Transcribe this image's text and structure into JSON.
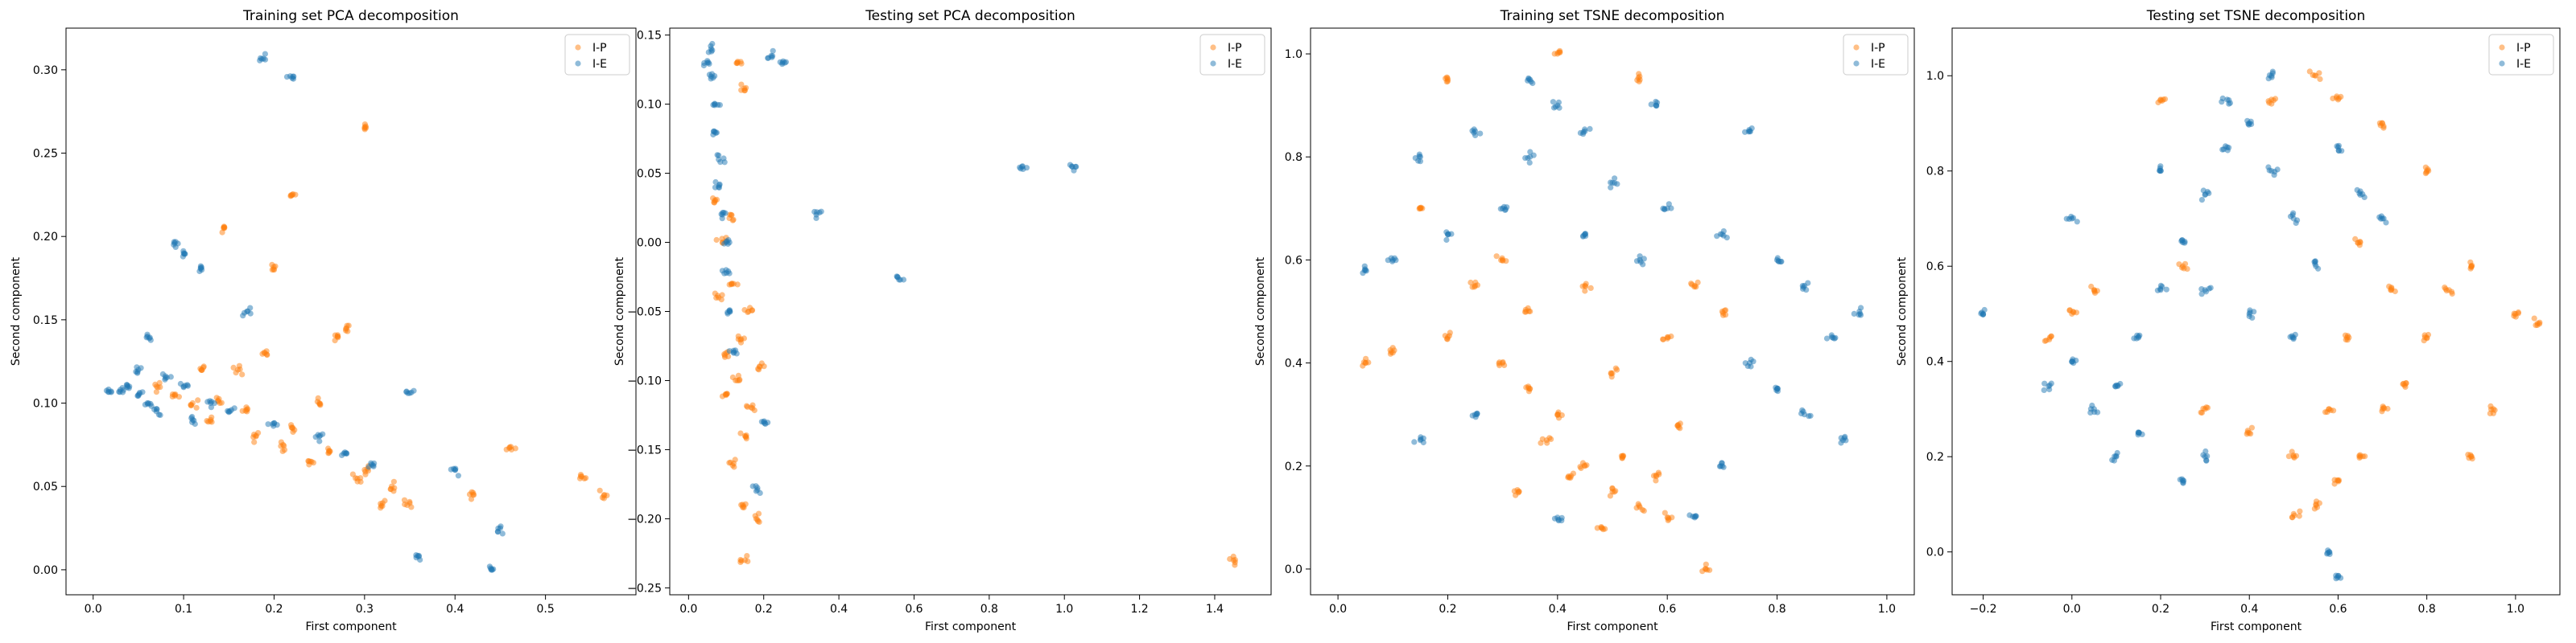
{
  "colors": {
    "ip": "#ff7f0e",
    "ie": "#1f77b4"
  },
  "chart_data": [
    {
      "type": "scatter",
      "title": "Training set PCA decomposition",
      "xlabel": "First component",
      "ylabel": "Second component",
      "xlim": [
        -0.03,
        0.6
      ],
      "ylim": [
        -0.015,
        0.325
      ],
      "xticks": [
        0.0,
        0.1,
        0.2,
        0.3,
        0.4,
        0.5
      ],
      "yticks": [
        0.0,
        0.05,
        0.1,
        0.15,
        0.2,
        0.25,
        0.3
      ],
      "xtick_labels": [
        "0.0",
        "0.1",
        "0.2",
        "0.3",
        "0.4",
        "0.5"
      ],
      "ytick_labels": [
        "0.00",
        "0.05",
        "0.10",
        "0.15",
        "0.20",
        "0.25",
        "0.30"
      ],
      "legend": {
        "position": "top-right",
        "entries": [
          "I-P",
          "I-E"
        ]
      },
      "grid": false,
      "series": [
        {
          "name": "I-P",
          "color": "#ff7f0e",
          "points": [
            [
              0.3,
              0.265
            ],
            [
              0.22,
              0.225
            ],
            [
              0.145,
              0.205
            ],
            [
              0.2,
              0.18
            ],
            [
              0.28,
              0.145
            ],
            [
              0.27,
              0.14
            ],
            [
              0.19,
              0.13
            ],
            [
              0.12,
              0.12
            ],
            [
              0.16,
              0.12
            ],
            [
              0.25,
              0.1
            ],
            [
              0.3,
              0.06
            ],
            [
              0.33,
              0.05
            ],
            [
              0.35,
              0.04
            ],
            [
              0.42,
              0.045
            ],
            [
              0.46,
              0.073
            ],
            [
              0.54,
              0.056
            ],
            [
              0.565,
              0.045
            ],
            [
              0.22,
              0.085
            ],
            [
              0.17,
              0.095
            ],
            [
              0.14,
              0.1
            ],
            [
              0.26,
              0.07
            ],
            [
              0.09,
              0.105
            ],
            [
              0.07,
              0.11
            ],
            [
              0.11,
              0.1
            ],
            [
              0.13,
              0.09
            ],
            [
              0.18,
              0.08
            ],
            [
              0.21,
              0.075
            ],
            [
              0.24,
              0.065
            ],
            [
              0.29,
              0.055
            ],
            [
              0.32,
              0.04
            ]
          ]
        },
        {
          "name": "I-E",
          "color": "#1f77b4",
          "points": [
            [
              0.185,
              0.307
            ],
            [
              0.22,
              0.295
            ],
            [
              0.09,
              0.196
            ],
            [
              0.1,
              0.19
            ],
            [
              0.12,
              0.18
            ],
            [
              0.17,
              0.155
            ],
            [
              0.06,
              0.14
            ],
            [
              0.35,
              0.106
            ],
            [
              0.4,
              0.06
            ],
            [
              0.36,
              0.008
            ],
            [
              0.44,
              0.0
            ],
            [
              0.45,
              0.025
            ],
            [
              0.05,
              0.12
            ],
            [
              0.08,
              0.115
            ],
            [
              0.04,
              0.11
            ],
            [
              0.03,
              0.108
            ],
            [
              0.1,
              0.11
            ],
            [
              0.13,
              0.1
            ],
            [
              0.15,
              0.095
            ],
            [
              0.2,
              0.088
            ],
            [
              0.25,
              0.08
            ],
            [
              0.28,
              0.07
            ],
            [
              0.31,
              0.062
            ],
            [
              0.07,
              0.095
            ],
            [
              0.06,
              0.1
            ],
            [
              0.02,
              0.107
            ],
            [
              0.05,
              0.105
            ],
            [
              0.11,
              0.09
            ]
          ]
        }
      ]
    },
    {
      "type": "scatter",
      "title": "Testing set PCA decomposition",
      "xlabel": "First component",
      "ylabel": "Second component",
      "xlim": [
        -0.05,
        1.55
      ],
      "ylim": [
        -0.255,
        0.155
      ],
      "xticks": [
        0.0,
        0.2,
        0.4,
        0.6,
        0.8,
        1.0,
        1.2,
        1.4
      ],
      "yticks": [
        -0.25,
        -0.2,
        -0.15,
        -0.1,
        -0.05,
        0.0,
        0.05,
        0.1,
        0.15
      ],
      "xtick_labels": [
        "0.0",
        "0.2",
        "0.4",
        "0.6",
        "0.8",
        "1.0",
        "1.2",
        "1.4"
      ],
      "ytick_labels": [
        "−0.25",
        "−0.20",
        "−0.15",
        "−0.10",
        "−0.05",
        "0.00",
        "0.05",
        "0.10",
        "0.15"
      ],
      "legend": {
        "position": "top-right",
        "entries": [
          "I-P",
          "I-E"
        ]
      },
      "grid": false,
      "series": [
        {
          "name": "I-P",
          "color": "#ff7f0e",
          "points": [
            [
              1.45,
              -0.23
            ],
            [
              0.15,
              -0.23
            ],
            [
              0.14,
              -0.19
            ],
            [
              0.18,
              -0.2
            ],
            [
              0.12,
              -0.16
            ],
            [
              0.15,
              -0.14
            ],
            [
              0.17,
              -0.12
            ],
            [
              0.13,
              -0.1
            ],
            [
              0.1,
              -0.08
            ],
            [
              0.14,
              -0.07
            ],
            [
              0.16,
              -0.05
            ],
            [
              0.12,
              -0.03
            ],
            [
              0.09,
              0.0
            ],
            [
              0.11,
              0.02
            ],
            [
              0.15,
              0.11
            ],
            [
              0.13,
              0.13
            ],
            [
              0.1,
              -0.11
            ],
            [
              0.19,
              -0.09
            ],
            [
              0.08,
              -0.04
            ],
            [
              0.07,
              0.03
            ]
          ]
        },
        {
          "name": "I-E",
          "color": "#1f77b4",
          "points": [
            [
              1.02,
              0.055
            ],
            [
              0.89,
              0.053
            ],
            [
              0.56,
              -0.027
            ],
            [
              0.34,
              0.02
            ],
            [
              0.25,
              0.13
            ],
            [
              0.22,
              0.135
            ],
            [
              0.2,
              -0.13
            ],
            [
              0.18,
              -0.18
            ],
            [
              0.06,
              0.14
            ],
            [
              0.06,
              0.12
            ],
            [
              0.07,
              0.1
            ],
            [
              0.07,
              0.08
            ],
            [
              0.08,
              0.06
            ],
            [
              0.08,
              0.04
            ],
            [
              0.09,
              0.02
            ],
            [
              0.1,
              0.0
            ],
            [
              0.1,
              -0.02
            ],
            [
              0.11,
              -0.05
            ],
            [
              0.12,
              -0.08
            ],
            [
              0.05,
              0.13
            ]
          ]
        }
      ]
    },
    {
      "type": "scatter",
      "title": "Training set TSNE decomposition",
      "xlabel": "First component",
      "ylabel": "Second component",
      "xlim": [
        -0.05,
        1.05
      ],
      "ylim": [
        -0.05,
        1.05
      ],
      "xticks": [
        0.0,
        0.2,
        0.4,
        0.6,
        0.8,
        1.0
      ],
      "yticks": [
        0.0,
        0.2,
        0.4,
        0.6,
        0.8,
        1.0
      ],
      "xtick_labels": [
        "0.0",
        "0.2",
        "0.4",
        "0.6",
        "0.8",
        "1.0"
      ],
      "ytick_labels": [
        "0.0",
        "0.2",
        "0.4",
        "0.6",
        "0.8",
        "1.0"
      ],
      "legend": {
        "position": "top-right",
        "entries": [
          "I-P",
          "I-E"
        ]
      },
      "grid": false,
      "series": [
        {
          "name": "I-P",
          "color": "#ff7f0e",
          "points": [
            [
              0.55,
              0.12
            ],
            [
              0.5,
              0.15
            ],
            [
              0.6,
              0.1
            ],
            [
              0.45,
              0.2
            ],
            [
              0.52,
              0.22
            ],
            [
              0.58,
              0.18
            ],
            [
              0.4,
              0.3
            ],
            [
              0.35,
              0.35
            ],
            [
              0.3,
              0.4
            ],
            [
              0.2,
              0.45
            ],
            [
              0.1,
              0.42
            ],
            [
              0.05,
              0.4
            ],
            [
              0.25,
              0.55
            ],
            [
              0.3,
              0.6
            ],
            [
              0.65,
              0.55
            ],
            [
              0.7,
              0.5
            ],
            [
              0.6,
              0.45
            ],
            [
              0.5,
              0.38
            ],
            [
              0.38,
              0.25
            ],
            [
              0.42,
              0.18
            ],
            [
              0.67,
              0.0
            ],
            [
              0.2,
              0.95
            ],
            [
              0.4,
              1.0
            ],
            [
              0.55,
              0.95
            ],
            [
              0.15,
              0.7
            ],
            [
              0.35,
              0.5
            ],
            [
              0.45,
              0.55
            ],
            [
              0.62,
              0.28
            ],
            [
              0.48,
              0.08
            ],
            [
              0.33,
              0.15
            ]
          ]
        },
        {
          "name": "I-E",
          "color": "#1f77b4",
          "points": [
            [
              0.4,
              0.9
            ],
            [
              0.45,
              0.85
            ],
            [
              0.35,
              0.8
            ],
            [
              0.5,
              0.75
            ],
            [
              0.3,
              0.7
            ],
            [
              0.6,
              0.7
            ],
            [
              0.7,
              0.65
            ],
            [
              0.8,
              0.6
            ],
            [
              0.85,
              0.55
            ],
            [
              0.95,
              0.5
            ],
            [
              0.9,
              0.45
            ],
            [
              0.85,
              0.3
            ],
            [
              0.8,
              0.35
            ],
            [
              0.75,
              0.4
            ],
            [
              0.25,
              0.85
            ],
            [
              0.15,
              0.8
            ],
            [
              0.1,
              0.6
            ],
            [
              0.2,
              0.65
            ],
            [
              0.45,
              0.65
            ],
            [
              0.55,
              0.6
            ],
            [
              0.35,
              0.95
            ],
            [
              0.25,
              0.3
            ],
            [
              0.15,
              0.25
            ],
            [
              0.7,
              0.2
            ],
            [
              0.92,
              0.25
            ],
            [
              0.65,
              0.1
            ],
            [
              0.4,
              0.1
            ],
            [
              0.05,
              0.58
            ],
            [
              0.58,
              0.9
            ],
            [
              0.75,
              0.85
            ]
          ]
        }
      ]
    },
    {
      "type": "scatter",
      "title": "Testing set TSNE decomposition",
      "xlabel": "First component",
      "ylabel": "Second component",
      "xlim": [
        -0.27,
        1.1
      ],
      "ylim": [
        -0.09,
        1.1
      ],
      "xticks": [
        -0.2,
        0.0,
        0.2,
        0.4,
        0.6,
        0.8,
        1.0
      ],
      "yticks": [
        0.0,
        0.2,
        0.4,
        0.6,
        0.8,
        1.0
      ],
      "xtick_labels": [
        "−0.2",
        "0.0",
        "0.2",
        "0.4",
        "0.6",
        "0.8",
        "1.0"
      ],
      "ytick_labels": [
        "0.0",
        "0.2",
        "0.4",
        "0.6",
        "0.8",
        "1.0"
      ],
      "legend": {
        "position": "top-right",
        "entries": [
          "I-P",
          "I-E"
        ]
      },
      "grid": false,
      "series": [
        {
          "name": "I-P",
          "color": "#ff7f0e",
          "points": [
            [
              0.55,
              0.1
            ],
            [
              0.5,
              0.08
            ],
            [
              0.6,
              0.15
            ],
            [
              0.65,
              0.2
            ],
            [
              0.7,
              0.3
            ],
            [
              0.75,
              0.35
            ],
            [
              0.8,
              0.45
            ],
            [
              0.85,
              0.55
            ],
            [
              0.9,
              0.6
            ],
            [
              1.0,
              0.5
            ],
            [
              1.05,
              0.48
            ],
            [
              0.45,
              0.95
            ],
            [
              0.55,
              1.0
            ],
            [
              0.6,
              0.95
            ],
            [
              0.7,
              0.9
            ],
            [
              0.8,
              0.8
            ],
            [
              0.05,
              0.55
            ],
            [
              0.0,
              0.5
            ],
            [
              -0.05,
              0.45
            ],
            [
              0.3,
              0.3
            ],
            [
              0.4,
              0.25
            ],
            [
              0.5,
              0.2
            ],
            [
              0.2,
              0.95
            ],
            [
              0.25,
              0.6
            ],
            [
              0.65,
              0.65
            ],
            [
              0.9,
              0.2
            ],
            [
              0.95,
              0.3
            ],
            [
              0.58,
              0.3
            ],
            [
              0.72,
              0.55
            ],
            [
              0.62,
              0.45
            ]
          ]
        },
        {
          "name": "I-E",
          "color": "#1f77b4",
          "points": [
            [
              0.4,
              0.9
            ],
            [
              0.35,
              0.85
            ],
            [
              0.45,
              0.8
            ],
            [
              0.3,
              0.75
            ],
            [
              0.5,
              0.7
            ],
            [
              0.25,
              0.65
            ],
            [
              0.2,
              0.55
            ],
            [
              0.15,
              0.45
            ],
            [
              0.1,
              0.35
            ],
            [
              0.05,
              0.3
            ],
            [
              0.0,
              0.4
            ],
            [
              -0.05,
              0.35
            ],
            [
              0.3,
              0.2
            ],
            [
              0.25,
              0.15
            ],
            [
              0.6,
              -0.05
            ],
            [
              0.58,
              0.0
            ],
            [
              0.55,
              0.6
            ],
            [
              0.65,
              0.75
            ],
            [
              0.7,
              0.7
            ],
            [
              -0.2,
              0.5
            ],
            [
              0.0,
              0.7
            ],
            [
              0.35,
              0.95
            ],
            [
              0.45,
              1.0
            ],
            [
              0.15,
              0.25
            ],
            [
              0.4,
              0.5
            ],
            [
              0.5,
              0.45
            ],
            [
              0.2,
              0.8
            ],
            [
              0.3,
              0.55
            ],
            [
              0.6,
              0.85
            ],
            [
              0.1,
              0.2
            ]
          ]
        }
      ]
    }
  ]
}
